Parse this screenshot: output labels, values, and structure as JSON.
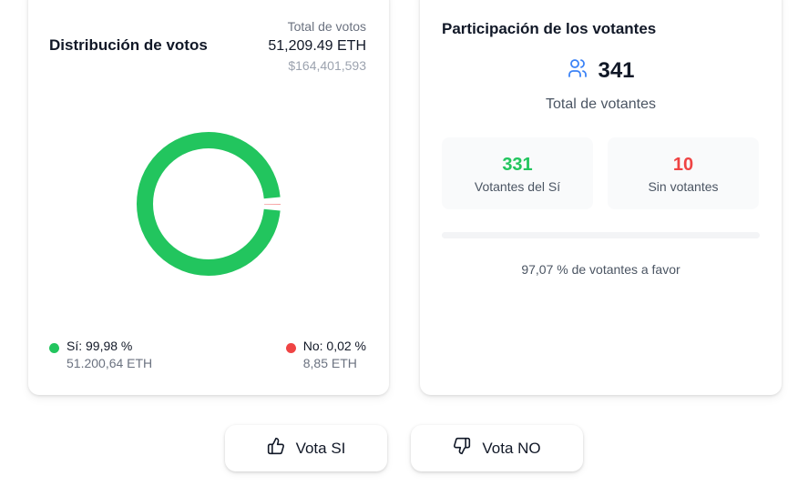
{
  "distribution": {
    "title": "Distribución de votos",
    "total_label": "Total de votos",
    "total_eth": "51,209.49 ETH",
    "total_usd": "$164,401,593",
    "yes": {
      "label": "Sí: 99,98 %",
      "eth": "51.200,64 ETH",
      "fraction": 0.9998,
      "color": "#22c55e"
    },
    "no": {
      "label": "No: 0,02 %",
      "eth": "8,85 ETH",
      "fraction": 0.0002,
      "color": "#ef4444"
    }
  },
  "participation": {
    "title": "Participación de los votantes",
    "total_voters": "341",
    "total_label": "Total de votantes",
    "yes_count": "331",
    "yes_label": "Votantes del Sí",
    "no_count": "10",
    "no_label": "Sin votantes",
    "favor_fraction": 0.9707,
    "favor_caption": "97,07 % de votantes a favor",
    "yes_color": "#22c55e",
    "no_color": "#ef4444",
    "icon": "users-icon"
  },
  "actions": {
    "vote_yes": "Vota SI",
    "vote_no": "Vota NO",
    "vote_yes_icon": "thumbs-up-icon",
    "vote_no_icon": "thumbs-down-icon"
  }
}
